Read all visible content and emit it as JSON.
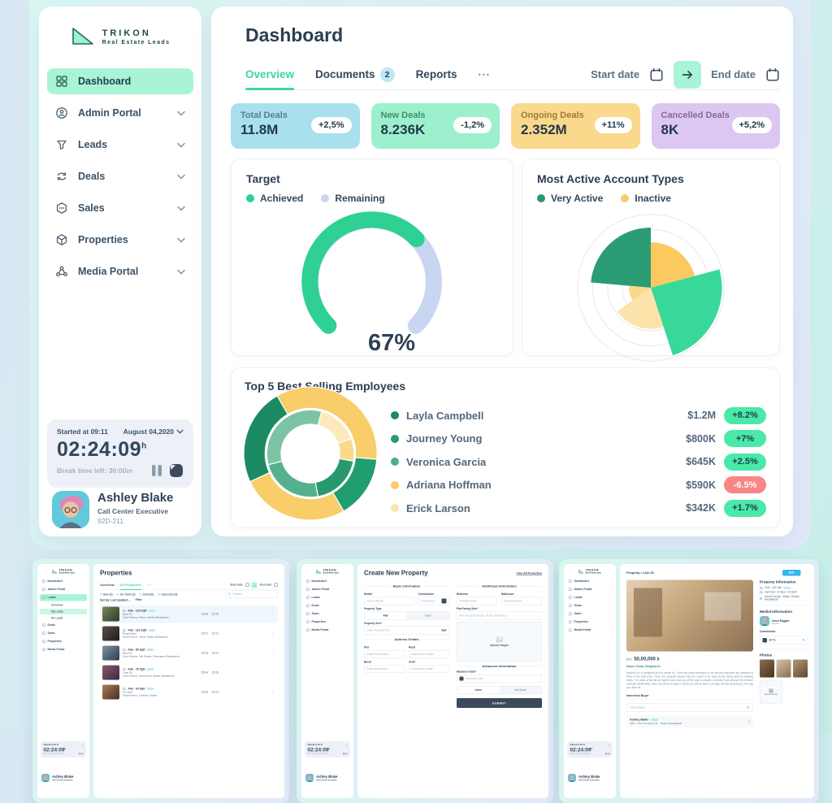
{
  "colors": {
    "accent": "#3ed6a2",
    "accent_light": "#a9f4d7",
    "navy": "#2e4156",
    "slate": "#54677d",
    "yellow": "#f8cd6a",
    "green_dark": "#1f9d6e",
    "pill_green": "#4ae9a7",
    "pill_red": "#f98585"
  },
  "sidebar": {
    "logo": {
      "title": "TRIKON",
      "subtitle": "Real Estate Leads"
    },
    "items": [
      {
        "label": "Dashboard",
        "icon": "grid-icon",
        "active": true,
        "chevron": false
      },
      {
        "label": "Admin Portal",
        "icon": "admin-icon",
        "active": false,
        "chevron": true
      },
      {
        "label": "Leads",
        "icon": "funnel-icon",
        "active": false,
        "chevron": true
      },
      {
        "label": "Deals",
        "icon": "deals-icon",
        "active": false,
        "chevron": true
      },
      {
        "label": "Sales",
        "icon": "sales-icon",
        "active": false,
        "chevron": true
      },
      {
        "label": "Properties",
        "icon": "box-icon",
        "active": false,
        "chevron": true
      },
      {
        "label": "Media Portal",
        "icon": "share-icon",
        "active": false,
        "chevron": true
      }
    ],
    "timer": {
      "started": "Started at 09:11",
      "date": "August 04,2020",
      "time": "02:24:09",
      "unit": "h",
      "break_text": "Break time left: 30:00m"
    },
    "profile": {
      "name": "Ashley Blake",
      "role": "Call Center Executive",
      "emp_id": "92D-211"
    }
  },
  "header": {
    "title": "Dashboard",
    "tabs": [
      {
        "label": "Overview",
        "active": true
      },
      {
        "label": "Documents",
        "badge": "2"
      },
      {
        "label": "Reports"
      }
    ],
    "more": "•••",
    "start_label": "Start date",
    "end_label": "End date"
  },
  "stats": [
    {
      "label": "Total Deals",
      "value": "11.8M",
      "delta": "+2,5%",
      "bg": "#a9e0ee",
      "label_color": "#527f90"
    },
    {
      "label": "New Deals",
      "value": "8.236K",
      "delta": "-1,2%",
      "bg": "#9df0cd",
      "label_color": "#3f8f6f"
    },
    {
      "label": "Ongoing Deals",
      "value": "2.352M",
      "delta": "+11%",
      "bg": "#fad88c",
      "label_color": "#9c7c36"
    },
    {
      "label": "Cancelled Deals",
      "value": "8K",
      "delta": "+5,2%",
      "bg": "#dcc6f2",
      "label_color": "#87699f"
    }
  ],
  "chart_data": [
    {
      "type": "gauge",
      "title": "Target",
      "value": 67,
      "label": "67%",
      "sweep": 270,
      "legend": [
        {
          "label": "Achieved",
          "color": "#2fd093"
        },
        {
          "label": "Remaining",
          "color": "#c8d6f1"
        }
      ]
    },
    {
      "type": "polar-area",
      "title": "Most Active Account Types",
      "legend": [
        {
          "label": "Very Active",
          "color": "#27996d"
        },
        {
          "label": "Inactive",
          "color": "#f8cd6a"
        }
      ],
      "rings": 5,
      "wedges": [
        {
          "start": -85,
          "end": 0,
          "r": 0.82,
          "color": "#2a9d74"
        },
        {
          "start": 0,
          "end": 75,
          "r": 0.62,
          "color": "#fbc95f"
        },
        {
          "start": 75,
          "end": 162,
          "r": 0.97,
          "color": "#38d89b"
        },
        {
          "start": 162,
          "end": 235,
          "r": 0.56,
          "color": "#fbe3a9"
        },
        {
          "start": 235,
          "end": 275,
          "r": 0.3,
          "color": "#fbd98c"
        }
      ]
    },
    {
      "type": "double-donut",
      "title": "Top 5 Best Selling Employees",
      "outer": [
        {
          "start": -30,
          "end": 95,
          "color": "#f8cd6a"
        },
        {
          "start": 95,
          "end": 150,
          "color": "#219e70"
        },
        {
          "start": 150,
          "end": 245,
          "color": "#f8cd6a"
        },
        {
          "start": 245,
          "end": 330,
          "color": "#1c8a62"
        }
      ],
      "inner": [
        {
          "start": -105,
          "end": 15,
          "color": "#7cc3a4"
        },
        {
          "start": 15,
          "end": 70,
          "color": "#fdeabc"
        },
        {
          "start": 70,
          "end": 100,
          "color": "#fbd98c"
        },
        {
          "start": 100,
          "end": 170,
          "color": "#27996d"
        },
        {
          "start": 170,
          "end": 255,
          "color": "#55b18d"
        }
      ],
      "employees": [
        {
          "name": "Layla Campbell",
          "dot": "#1d8a63",
          "value": "$1.2M",
          "delta": "+8.2%",
          "positive": true
        },
        {
          "name": "Journey Young",
          "dot": "#27996d",
          "value": "$800K",
          "delta": "+7%",
          "positive": true
        },
        {
          "name": "Veronica Garcia",
          "dot": "#4fae88",
          "value": "$645K",
          "delta": "+2.5%",
          "positive": true
        },
        {
          "name": "Adriana Hoffman",
          "dot": "#f8cd6a",
          "value": "$590K",
          "delta": "-6.5%",
          "positive": false
        },
        {
          "name": "Erick Larson",
          "dot": "#fce4ae",
          "value": "$342K",
          "delta": "+1.7%",
          "positive": true
        }
      ]
    }
  ],
  "thumbnails": {
    "properties_page": {
      "title": "Properties",
      "tab_overview": "Overview",
      "tab_all": "All Properties",
      "more": "•••",
      "start_label": "Start date",
      "end_label": "End date",
      "arrow": "→",
      "filters": [
        "New (3)",
        "On Trash (3)",
        "Sold (20)",
        "Cancelled (3)"
      ],
      "sort": "Sort By: Last Updated ⌄",
      "filter_btn": "Filter",
      "search": "Search...",
      "leads_submenu": [
        "Overview",
        "My Leads",
        "All Leads"
      ],
      "rows": [
        {
          "l1": "Flat · 120 Sqft",
          "l2": "Bayn Rd",
          "l3": "South Facing · Mirpur, Dhaka, Bangladesh",
          "beds": "03",
          "baths": "02",
          "c1": "#77875a",
          "c2": "#2c3a25"
        },
        {
          "l1": "Flat · 112 Sqft",
          "l2": "Rupali Metro",
          "l3": "South Facing · Savar, Dhaka, Bangladesh",
          "beds": "01",
          "baths": "01",
          "c1": "#574f4a",
          "c2": "#211d1b"
        },
        {
          "l1": "Flat · 65 Sqft",
          "l2": "Bayn Rd",
          "l3": "South Facing · Hal Shahar, Chattogram, Bangladesh",
          "beds": "03",
          "baths": "01",
          "c1": "#7e95aa",
          "c2": "#2d3c4c"
        },
        {
          "l1": "Flat · 76 Sqft",
          "l2": "Chan Rd",
          "l3": "South Facing · Dhanmondi, Dhaka, Bangladesh",
          "beds": "04",
          "baths": "03",
          "c1": "#8a5a66",
          "c2": "#392a47"
        },
        {
          "l1": "Flat · 34 Sqft",
          "l2": "Tex Steel",
          "l3": "South Facing · Gulshan, Dhaka",
          "beds": "02",
          "baths": "01",
          "c1": "#a97e55",
          "c2": "#4a2f20"
        }
      ]
    },
    "create_page": {
      "title": "Create New Property",
      "link": "View All Properties",
      "sec_basic": "Basic Information",
      "sec_additional": "Additional Information",
      "sec_address": "Address Details",
      "sec_advanced": "Advanced Information",
      "media_label": "Media*",
      "media_ph": "Search Media",
      "commission_label": "Commission",
      "commission_ph": "Commission",
      "type_label": "Property Type",
      "type_flat": "Flat",
      "type_land": "Land",
      "size_label": "Property Size*",
      "size_ph": "Enter Property Size",
      "size_unit": "Sqft",
      "plot_label": "Plot",
      "plot_ph": "Enter Plot Number",
      "road_label": "Road",
      "road_ph": "Enter Road Details",
      "block_label": "Block",
      "block_ph": "Enter Block Name",
      "area_label": "Area*",
      "area_ph": "Enter Area Details",
      "bedroom_label": "Bedroom",
      "bedroom_ph": "Total Bedroom",
      "bathroom_label": "Bathroom",
      "bathroom_ph": "Total Bathroom",
      "facing_label": "Flat Facing Side*",
      "facing_ph": "Flat Facing (Example: North, South Etc.)",
      "upload": "Upload Images",
      "handover_label": "Handover Date*",
      "handover_ph": "Handover Date",
      "used": "Used",
      "not_used": "Not Used",
      "submit": "SUBMIT"
    },
    "detail_page": {
      "breadcrumb": "Property / LAD-25",
      "edit": "Edit",
      "price_prefix": "BDT",
      "price": "50,00,000 ৳",
      "location": "Mirpur, Dhaka, Bangladesh",
      "description": "Beyond it is a wonderful area to reside on. There are three bedrooms in the flat and balconies are attached to three of the bedrooms. There are separate spaces that are meant to be used as the dining and the drawing areas. The walls of the flat are light in color and you will be able to create a contrast if you choose the furniture carefully. Additionally, there are plenty of ways in which you will be able to arrange this flat according to the way you deem fit.",
      "interested": "Interested Buyer",
      "link_buyer": "Link a Buyer...",
      "buyer_name": "Ashley Blake",
      "buyer_meta": "CEO · UCC Company Ltd. · Dhaka, Bangladesh",
      "info_title": "Property Information",
      "info_l1": "Flat · 120 Sqft",
      "info_l2": "Asif Holl · 03 Bed · 02 Bath",
      "info_l3": "South Facing · Mirpur, Dhaka, Bangladesh",
      "media_title": "Medial Information",
      "media_name": "Aron Rigger",
      "media_role": "Media",
      "commission_label": "Commission",
      "commission_value": "10 %",
      "photos_title": "Photos",
      "upload": "Upload Image",
      "photo_colors": [
        [
          "#8a6f52",
          "#4a3category220"
        ],
        [
          "#d8c4a8",
          "#8a6f52"
        ],
        [
          "#b59a72",
          "#5c4630"
        ]
      ]
    }
  }
}
